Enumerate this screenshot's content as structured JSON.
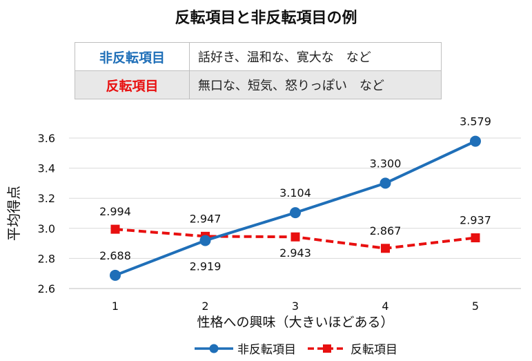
{
  "title": "反転項目と非反転項目の例",
  "table": {
    "rows": [
      {
        "category": "非反転項目",
        "examples": "話好き、温和な、寛大な　など",
        "color": "#1F6FB8"
      },
      {
        "category": "反転項目",
        "examples": "無口な、短気、怒りっぽい　など",
        "color": "#E81010"
      }
    ]
  },
  "chart_data": {
    "type": "line",
    "x": [
      1,
      2,
      3,
      4,
      5
    ],
    "xlabel": "性格への興味（大きいほどある）",
    "ylabel": "平均得点",
    "ylim": [
      2.6,
      3.6
    ],
    "yticks": [
      2.6,
      2.8,
      3.0,
      3.2,
      3.4,
      3.6
    ],
    "ytick_labels": [
      "2.6",
      "2.8",
      "3.0",
      "3.2",
      "3.4",
      "3.6"
    ],
    "grid": "horizontal",
    "legend": "bottom",
    "series": [
      {
        "name": "非反転項目",
        "values": [
          2.688,
          2.919,
          3.104,
          3.3,
          3.579
        ],
        "labels": [
          "2.688",
          "2.919",
          "3.104",
          "3.300",
          "3.579"
        ],
        "color": "#1F6FB8",
        "style": "solid",
        "marker": "circle"
      },
      {
        "name": "反転項目",
        "values": [
          2.994,
          2.947,
          2.943,
          2.867,
          2.937
        ],
        "labels": [
          "2.994",
          "2.947",
          "2.943",
          "2.867",
          "2.937"
        ],
        "color": "#E81010",
        "style": "dashed",
        "marker": "square"
      }
    ]
  }
}
